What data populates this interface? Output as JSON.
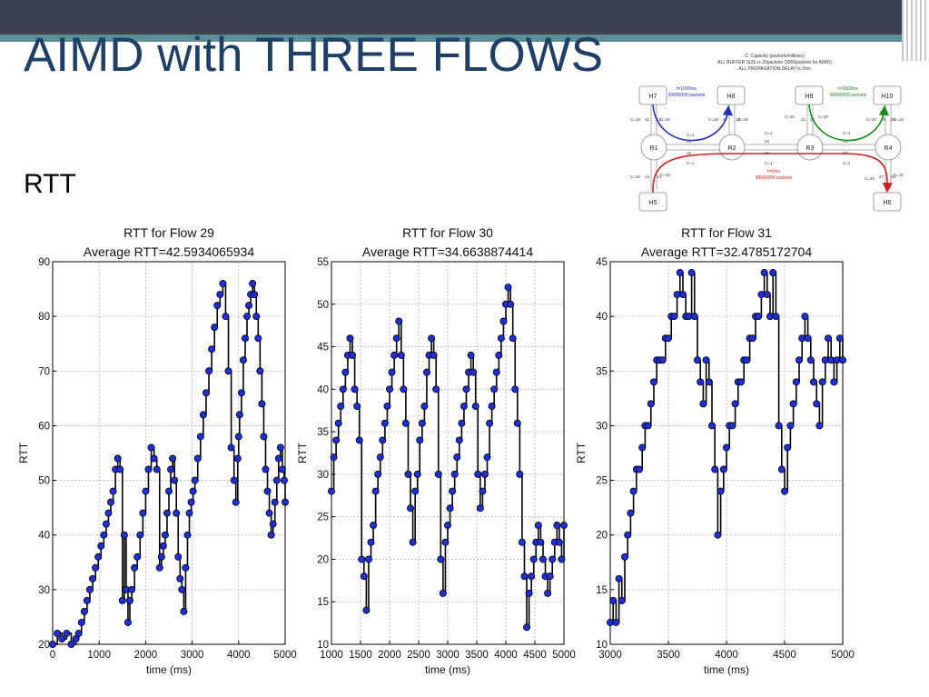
{
  "slide": {
    "title": "AIMD with THREE FLOWS",
    "section_label": "RTT",
    "colors": {
      "title": "#1e3f66",
      "topbar": "#3c4150",
      "accent_teal": "#5c8f95"
    }
  },
  "topology": {
    "legend_lines": [
      "C: Capacity (packets/millisec)",
      "ALL BUFFER SIZE is 30packets (3000packets for AIMD)",
      "ALL PROPAGATION DELAY is 2ms"
    ],
    "nodes": {
      "h7": "H7",
      "h8": "H8",
      "h9": "H9",
      "h10": "H10",
      "h5": "H5",
      "h6": "H6",
      "r1": "R1",
      "r2": "R2",
      "r3": "R3",
      "r4": "R4"
    },
    "flows": [
      {
        "start": "t=1000ms",
        "size": "30000000 packets",
        "color": "#2233bb"
      },
      {
        "start": "t=3000ms",
        "size": "30000000 packets",
        "color": "#1a8a1a"
      },
      {
        "start": "t=0ms",
        "size": "30000000 packets",
        "color": "#cc2222"
      }
    ],
    "capacity_labels": [
      "C=10",
      "C=10",
      "C=10",
      "C=10",
      "C=10",
      "C=10",
      "C=10",
      "C=10",
      "C=10",
      "C=10",
      "C=10",
      "C=10",
      "C=1",
      "C=1",
      "C=1",
      "C=1",
      "C=1",
      "C=1"
    ],
    "link_numbers": [
      "11",
      "12",
      "17",
      "18",
      "21",
      "22",
      "25",
      "26",
      "13",
      "14",
      "27",
      "28",
      "16",
      "15",
      "20",
      "19",
      "24",
      "23"
    ],
    "colors": {
      "flow1": "#2233bb",
      "flow2": "#1a8a1a",
      "flow3": "#cc2222"
    }
  },
  "chart_data": [
    {
      "type": "line",
      "title": "RTT for Flow 29",
      "subtitle": "Average RTT=42.5934065934",
      "xlabel": "time (ms)",
      "ylabel": "RTT",
      "xlim": [
        0,
        5000
      ],
      "ylim": [
        20,
        90
      ],
      "xticks": [
        0,
        1000,
        2000,
        3000,
        4000,
        5000
      ],
      "yticks": [
        20,
        30,
        40,
        50,
        60,
        70,
        80,
        90
      ],
      "grid": true,
      "series_color": "#1f2fd6",
      "x": [
        0,
        100,
        200,
        300,
        400,
        500,
        560,
        620,
        680,
        740,
        800,
        860,
        920,
        980,
        1040,
        1100,
        1150,
        1200,
        1250,
        1300,
        1350,
        1400,
        1450,
        1500,
        1540,
        1580,
        1620,
        1660,
        1700,
        1760,
        1820,
        1880,
        1940,
        2000,
        2060,
        2120,
        2180,
        2240,
        2300,
        2340,
        2380,
        2420,
        2460,
        2500,
        2540,
        2580,
        2620,
        2660,
        2700,
        2740,
        2780,
        2820,
        2860,
        2900,
        2940,
        2980,
        3020,
        3060,
        3120,
        3180,
        3240,
        3300,
        3360,
        3420,
        3480,
        3540,
        3600,
        3660,
        3720,
        3780,
        3840,
        3900,
        3940,
        3980,
        4000,
        4020,
        4060,
        4100,
        4140,
        4180,
        4220,
        4260,
        4300,
        4340,
        4380,
        4420,
        4460,
        4500,
        4540,
        4580,
        4620,
        4660,
        4700,
        4740,
        4780,
        4820,
        4860,
        4900,
        4940,
        4980,
        5000
      ],
      "y": [
        20,
        22,
        21,
        22,
        20,
        21,
        22,
        24,
        26,
        28,
        30,
        32,
        34,
        36,
        38,
        40,
        42,
        44,
        46,
        48,
        52,
        54,
        52,
        28,
        40,
        30,
        24,
        28,
        30,
        34,
        36,
        40,
        44,
        48,
        52,
        56,
        54,
        52,
        34,
        36,
        38,
        40,
        44,
        48,
        52,
        54,
        50,
        44,
        36,
        32,
        30,
        26,
        34,
        40,
        44,
        46,
        48,
        50,
        54,
        58,
        62,
        66,
        70,
        74,
        78,
        82,
        84,
        86,
        80,
        70,
        56,
        50,
        46,
        54,
        58,
        62,
        66,
        72,
        76,
        80,
        82,
        84,
        86,
        84,
        80,
        76,
        70,
        64,
        58,
        52,
        48,
        44,
        40,
        42,
        46,
        50,
        54,
        56,
        52,
        50,
        46
      ]
    },
    {
      "type": "line",
      "title": "RTT for Flow 30",
      "subtitle": "Average RTT=34.6638874414",
      "xlabel": "time (ms)",
      "ylabel": "RTT",
      "xlim": [
        1000,
        5000
      ],
      "ylim": [
        10,
        55
      ],
      "xticks": [
        1000,
        1500,
        2000,
        2500,
        3000,
        3500,
        4000,
        4500,
        5000
      ],
      "yticks": [
        10,
        15,
        20,
        25,
        30,
        35,
        40,
        45,
        50,
        55
      ],
      "grid": true,
      "series_color": "#1f2fd6",
      "x": [
        1000,
        1040,
        1080,
        1120,
        1160,
        1200,
        1240,
        1280,
        1320,
        1360,
        1400,
        1440,
        1480,
        1520,
        1560,
        1600,
        1640,
        1680,
        1720,
        1760,
        1800,
        1840,
        1880,
        1920,
        1960,
        2000,
        2040,
        2080,
        2120,
        2160,
        2200,
        2240,
        2280,
        2320,
        2360,
        2400,
        2440,
        2480,
        2520,
        2560,
        2600,
        2640,
        2680,
        2720,
        2760,
        2800,
        2840,
        2880,
        2920,
        2960,
        3000,
        3040,
        3080,
        3120,
        3160,
        3200,
        3240,
        3280,
        3320,
        3360,
        3400,
        3440,
        3480,
        3520,
        3560,
        3600,
        3640,
        3680,
        3720,
        3760,
        3800,
        3840,
        3880,
        3920,
        3960,
        4000,
        4040,
        4080,
        4120,
        4160,
        4200,
        4240,
        4280,
        4320,
        4360,
        4400,
        4440,
        4480,
        4520,
        4560,
        4600,
        4640,
        4680,
        4720,
        4760,
        4800,
        4840,
        4880,
        4920,
        4960,
        5000
      ],
      "y": [
        28,
        32,
        34,
        36,
        38,
        40,
        42,
        44,
        46,
        44,
        40,
        38,
        34,
        20,
        18,
        14,
        20,
        22,
        24,
        28,
        30,
        32,
        34,
        36,
        38,
        40,
        42,
        44,
        46,
        48,
        44,
        40,
        36,
        30,
        26,
        22,
        28,
        30,
        34,
        36,
        38,
        42,
        44,
        46,
        44,
        40,
        30,
        20,
        16,
        22,
        24,
        26,
        28,
        30,
        32,
        34,
        36,
        38,
        40,
        42,
        44,
        42,
        38,
        30,
        26,
        28,
        30,
        32,
        36,
        38,
        40,
        42,
        44,
        46,
        48,
        50,
        52,
        50,
        46,
        40,
        36,
        30,
        22,
        18,
        12,
        16,
        18,
        20,
        22,
        24,
        22,
        20,
        18,
        16,
        18,
        20,
        22,
        24,
        22,
        20,
        24
      ]
    },
    {
      "type": "line",
      "title": "RTT for Flow 31",
      "subtitle": "Average RTT=32.4785172704",
      "xlabel": "time (ms)",
      "ylabel": "RTT",
      "xlim": [
        3000,
        5000
      ],
      "ylim": [
        10,
        45
      ],
      "xticks": [
        3000,
        3500,
        4000,
        4500,
        5000
      ],
      "yticks": [
        10,
        15,
        20,
        25,
        30,
        35,
        40,
        45
      ],
      "grid": true,
      "series_color": "#1f2fd6",
      "x": [
        3000,
        3025,
        3050,
        3075,
        3100,
        3125,
        3150,
        3175,
        3200,
        3225,
        3250,
        3275,
        3300,
        3325,
        3350,
        3375,
        3400,
        3425,
        3450,
        3475,
        3500,
        3525,
        3550,
        3575,
        3600,
        3625,
        3650,
        3675,
        3700,
        3725,
        3750,
        3775,
        3800,
        3825,
        3850,
        3875,
        3900,
        3925,
        3950,
        3975,
        4000,
        4025,
        4050,
        4075,
        4100,
        4125,
        4150,
        4175,
        4200,
        4225,
        4250,
        4275,
        4300,
        4325,
        4350,
        4375,
        4400,
        4425,
        4450,
        4475,
        4500,
        4525,
        4550,
        4575,
        4600,
        4625,
        4650,
        4675,
        4700,
        4725,
        4750,
        4775,
        4800,
        4825,
        4850,
        4875,
        4900,
        4925,
        4950,
        4975,
        5000
      ],
      "y": [
        12,
        14,
        12,
        16,
        14,
        18,
        20,
        22,
        24,
        26,
        26,
        28,
        30,
        30,
        32,
        34,
        36,
        36,
        36,
        38,
        38,
        40,
        40,
        42,
        44,
        42,
        40,
        40,
        44,
        40,
        36,
        34,
        32,
        36,
        34,
        30,
        26,
        20,
        24,
        26,
        28,
        30,
        30,
        32,
        34,
        34,
        36,
        36,
        38,
        38,
        40,
        40,
        42,
        44,
        42,
        40,
        44,
        40,
        30,
        26,
        24,
        28,
        30,
        32,
        34,
        36,
        38,
        40,
        38,
        36,
        34,
        32,
        30,
        34,
        36,
        38,
        36,
        34,
        36,
        38,
        36
      ]
    }
  ]
}
